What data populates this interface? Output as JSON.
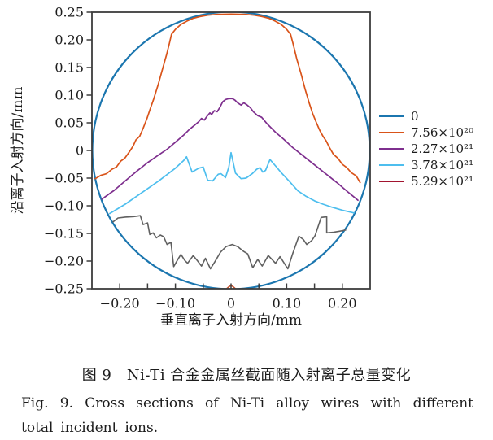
{
  "figure": {
    "caption_zh": "图 9　Ni-Ti 合金金属丝截面随入射离子总量变化",
    "caption_en": "Fig. 9. Cross sections of Ni-Ti alloy wires with different total incident ions."
  },
  "chart_data": {
    "type": "line",
    "title": "",
    "axes": {
      "xlabel": "垂直离子入射方向/mm",
      "ylabel": "沿离子入射方向/mm",
      "xlim": [
        -0.25,
        0.25
      ],
      "ylim": [
        -0.25,
        0.25
      ],
      "grid": false,
      "x_ticks": [
        {
          "v": -0.2,
          "label": "−0.20"
        },
        {
          "v": -0.15
        },
        {
          "v": -0.1,
          "label": "−0.10"
        },
        {
          "v": -0.05
        },
        {
          "v": 0,
          "label": "0"
        },
        {
          "v": 0.05
        },
        {
          "v": 0.1,
          "label": "0.10"
        },
        {
          "v": 0.15
        },
        {
          "v": 0.2,
          "label": "0.20"
        }
      ],
      "y_ticks": [
        {
          "v": 0.25,
          "label": "0.25"
        },
        {
          "v": 0.2,
          "label": "0.20"
        },
        {
          "v": 0.15,
          "label": "0.15"
        },
        {
          "v": 0.1,
          "label": "0.10"
        },
        {
          "v": 0.05,
          "label": "0.05"
        },
        {
          "v": 0,
          "label": "0"
        },
        {
          "v": -0.05,
          "label": "−0.05"
        },
        {
          "v": -0.1,
          "label": "−0.10"
        },
        {
          "v": -0.15,
          "label": "−0.15"
        },
        {
          "v": -0.2,
          "label": "−0.20"
        },
        {
          "v": -0.25,
          "label": "−0.25"
        }
      ]
    },
    "legend": {
      "position": "right-of-plot",
      "items": [
        {
          "label": "0",
          "color": "#1b76af"
        },
        {
          "label": "7.56×10²⁰",
          "color": "#d95319"
        },
        {
          "label": "2.27×10²¹",
          "color": "#7e2f8e"
        },
        {
          "label": "3.78×10²¹",
          "color": "#4dbeee"
        },
        {
          "label": "5.29×10²¹",
          "color": "#a2142f"
        }
      ]
    },
    "series": [
      {
        "name": "0 (original wire cross-section)",
        "type": "circle",
        "color": "#1b76af",
        "width": 2.2,
        "cx": 0,
        "cy": 0,
        "r": 0.25
      },
      {
        "name": "7.56×10²⁰",
        "type": "line",
        "color": "#d95319",
        "width": 1.7,
        "points": [
          [
            -0.244,
            -0.051
          ],
          [
            -0.234,
            -0.045
          ],
          [
            -0.224,
            -0.042
          ],
          [
            -0.214,
            -0.034
          ],
          [
            -0.206,
            -0.03
          ],
          [
            -0.198,
            -0.019
          ],
          [
            -0.191,
            -0.014
          ],
          [
            -0.183,
            -0.003
          ],
          [
            -0.176,
            0.008
          ],
          [
            -0.171,
            0.019
          ],
          [
            -0.164,
            0.026
          ],
          [
            -0.158,
            0.04
          ],
          [
            -0.151,
            0.058
          ],
          [
            -0.146,
            0.073
          ],
          [
            -0.139,
            0.093
          ],
          [
            -0.131,
            0.119
          ],
          [
            -0.123,
            0.148
          ],
          [
            -0.116,
            0.173
          ],
          [
            -0.111,
            0.193
          ],
          [
            -0.107,
            0.21
          ],
          [
            -0.1,
            0.219
          ],
          [
            -0.09,
            0.228
          ],
          [
            -0.079,
            0.234
          ],
          [
            -0.068,
            0.239
          ],
          [
            -0.056,
            0.242
          ],
          [
            -0.042,
            0.2445
          ],
          [
            -0.025,
            0.246
          ],
          [
            0,
            0.2465
          ],
          [
            0.025,
            0.246
          ],
          [
            0.042,
            0.2445
          ],
          [
            0.056,
            0.242
          ],
          [
            0.068,
            0.239
          ],
          [
            0.079,
            0.234
          ],
          [
            0.09,
            0.228
          ],
          [
            0.1,
            0.219
          ],
          [
            0.107,
            0.21
          ],
          [
            0.112,
            0.191
          ],
          [
            0.118,
            0.166
          ],
          [
            0.126,
            0.138
          ],
          [
            0.133,
            0.111
          ],
          [
            0.14,
            0.087
          ],
          [
            0.147,
            0.066
          ],
          [
            0.153,
            0.051
          ],
          [
            0.159,
            0.037
          ],
          [
            0.165,
            0.026
          ],
          [
            0.171,
            0.017
          ],
          [
            0.177,
            0.005
          ],
          [
            0.184,
            -0.007
          ],
          [
            0.192,
            -0.014
          ],
          [
            0.2,
            -0.025
          ],
          [
            0.208,
            -0.031
          ],
          [
            0.216,
            -0.04
          ],
          [
            0.225,
            -0.046
          ],
          [
            0.232,
            -0.058
          ]
        ]
      },
      {
        "name": "2.27×10²¹",
        "type": "line",
        "color": "#7e2f8e",
        "width": 1.7,
        "points": [
          [
            -0.232,
            -0.088
          ],
          [
            -0.21,
            -0.072
          ],
          [
            -0.19,
            -0.055
          ],
          [
            -0.17,
            -0.038
          ],
          [
            -0.15,
            -0.022
          ],
          [
            -0.13,
            -0.008
          ],
          [
            -0.115,
            0.002
          ],
          [
            -0.1,
            0.015
          ],
          [
            -0.085,
            0.028
          ],
          [
            -0.075,
            0.038
          ],
          [
            -0.065,
            0.046
          ],
          [
            -0.058,
            0.052
          ],
          [
            -0.053,
            0.058
          ],
          [
            -0.048,
            0.055
          ],
          [
            -0.043,
            0.062
          ],
          [
            -0.038,
            0.068
          ],
          [
            -0.035,
            0.065
          ],
          [
            -0.03,
            0.072
          ],
          [
            -0.025,
            0.07
          ],
          [
            -0.02,
            0.078
          ],
          [
            -0.015,
            0.088
          ],
          [
            -0.01,
            0.092
          ],
          [
            -0.005,
            0.0935
          ],
          [
            0.002,
            0.094
          ],
          [
            0.007,
            0.091
          ],
          [
            0.012,
            0.086
          ],
          [
            0.018,
            0.082
          ],
          [
            0.023,
            0.086
          ],
          [
            0.028,
            0.083
          ],
          [
            0.035,
            0.077
          ],
          [
            0.04,
            0.07
          ],
          [
            0.048,
            0.063
          ],
          [
            0.055,
            0.06
          ],
          [
            0.065,
            0.048
          ],
          [
            0.08,
            0.033
          ],
          [
            0.095,
            0.02
          ],
          [
            0.11,
            0.006
          ],
          [
            0.13,
            -0.01
          ],
          [
            0.15,
            -0.026
          ],
          [
            0.17,
            -0.042
          ],
          [
            0.19,
            -0.058
          ],
          [
            0.21,
            -0.075
          ],
          [
            0.228,
            -0.09
          ]
        ]
      },
      {
        "name": "3.78×10²¹",
        "type": "line",
        "color": "#4dbeee",
        "width": 1.7,
        "points": [
          [
            -0.218,
            -0.114
          ],
          [
            -0.19,
            -0.097
          ],
          [
            -0.16,
            -0.076
          ],
          [
            -0.13,
            -0.055
          ],
          [
            -0.1,
            -0.032
          ],
          [
            -0.085,
            -0.018
          ],
          [
            -0.08,
            -0.0115
          ],
          [
            -0.07,
            -0.039
          ],
          [
            -0.058,
            -0.032
          ],
          [
            -0.05,
            -0.03
          ],
          [
            -0.042,
            -0.054
          ],
          [
            -0.033,
            -0.055
          ],
          [
            -0.023,
            -0.043
          ],
          [
            -0.018,
            -0.042
          ],
          [
            -0.01,
            -0.049
          ],
          [
            -0.004,
            -0.03
          ],
          [
            0.0,
            -0.004
          ],
          [
            0.004,
            -0.022
          ],
          [
            0.008,
            -0.041
          ],
          [
            0.018,
            -0.051
          ],
          [
            0.027,
            -0.05
          ],
          [
            0.038,
            -0.042
          ],
          [
            0.046,
            -0.034
          ],
          [
            0.052,
            -0.031
          ],
          [
            0.057,
            -0.039
          ],
          [
            0.062,
            -0.036
          ],
          [
            0.07,
            -0.0165
          ],
          [
            0.08,
            -0.028
          ],
          [
            0.09,
            -0.04
          ],
          [
            0.105,
            -0.056
          ],
          [
            0.12,
            -0.073
          ],
          [
            0.135,
            -0.083
          ],
          [
            0.15,
            -0.091
          ],
          [
            0.165,
            -0.097
          ],
          [
            0.18,
            -0.102
          ],
          [
            0.2,
            -0.108
          ],
          [
            0.221,
            -0.113
          ]
        ]
      },
      {
        "name": "5.29×10²¹ residual spike (bottom center)",
        "type": "line",
        "color": "#c0512e",
        "width": 1.6,
        "points": [
          [
            -0.008,
            -0.25
          ],
          [
            -0.004,
            -0.2465
          ],
          [
            0.0,
            -0.2443
          ],
          [
            0.004,
            -0.2465
          ],
          [
            0.008,
            -0.25
          ]
        ]
      },
      {
        "name": "unlabeled gray eroded profile",
        "type": "line",
        "color": "#606060",
        "width": 1.6,
        "points": [
          [
            -0.212,
            -0.129
          ],
          [
            -0.203,
            -0.122
          ],
          [
            -0.19,
            -0.1205
          ],
          [
            -0.175,
            -0.1195
          ],
          [
            -0.163,
            -0.118
          ],
          [
            -0.158,
            -0.134
          ],
          [
            -0.15,
            -0.131
          ],
          [
            -0.146,
            -0.152
          ],
          [
            -0.14,
            -0.149
          ],
          [
            -0.134,
            -0.158
          ],
          [
            -0.127,
            -0.153
          ],
          [
            -0.121,
            -0.156
          ],
          [
            -0.115,
            -0.17
          ],
          [
            -0.108,
            -0.166
          ],
          [
            -0.103,
            -0.21
          ],
          [
            -0.095,
            -0.196
          ],
          [
            -0.09,
            -0.188
          ],
          [
            -0.083,
            -0.199
          ],
          [
            -0.078,
            -0.204
          ],
          [
            -0.068,
            -0.19
          ],
          [
            -0.06,
            -0.2
          ],
          [
            -0.053,
            -0.209
          ],
          [
            -0.046,
            -0.195
          ],
          [
            -0.037,
            -0.214
          ],
          [
            -0.029,
            -0.201
          ],
          [
            -0.019,
            -0.184
          ],
          [
            -0.009,
            -0.174
          ],
          [
            0.002,
            -0.17
          ],
          [
            0.012,
            -0.174
          ],
          [
            0.022,
            -0.182
          ],
          [
            0.03,
            -0.187
          ],
          [
            0.039,
            -0.212
          ],
          [
            0.048,
            -0.197
          ],
          [
            0.056,
            -0.209
          ],
          [
            0.067,
            -0.19
          ],
          [
            0.08,
            -0.204
          ],
          [
            0.088,
            -0.192
          ],
          [
            0.102,
            -0.214
          ],
          [
            0.111,
            -0.186
          ],
          [
            0.122,
            -0.155
          ],
          [
            0.13,
            -0.161
          ],
          [
            0.136,
            -0.17
          ],
          [
            0.145,
            -0.163
          ],
          [
            0.151,
            -0.154
          ],
          [
            0.158,
            -0.133
          ],
          [
            0.162,
            -0.121
          ],
          [
            0.172,
            -0.12
          ],
          [
            0.172,
            -0.149
          ],
          [
            0.184,
            -0.148
          ],
          [
            0.195,
            -0.146
          ],
          [
            0.206,
            -0.144
          ]
        ]
      }
    ]
  }
}
